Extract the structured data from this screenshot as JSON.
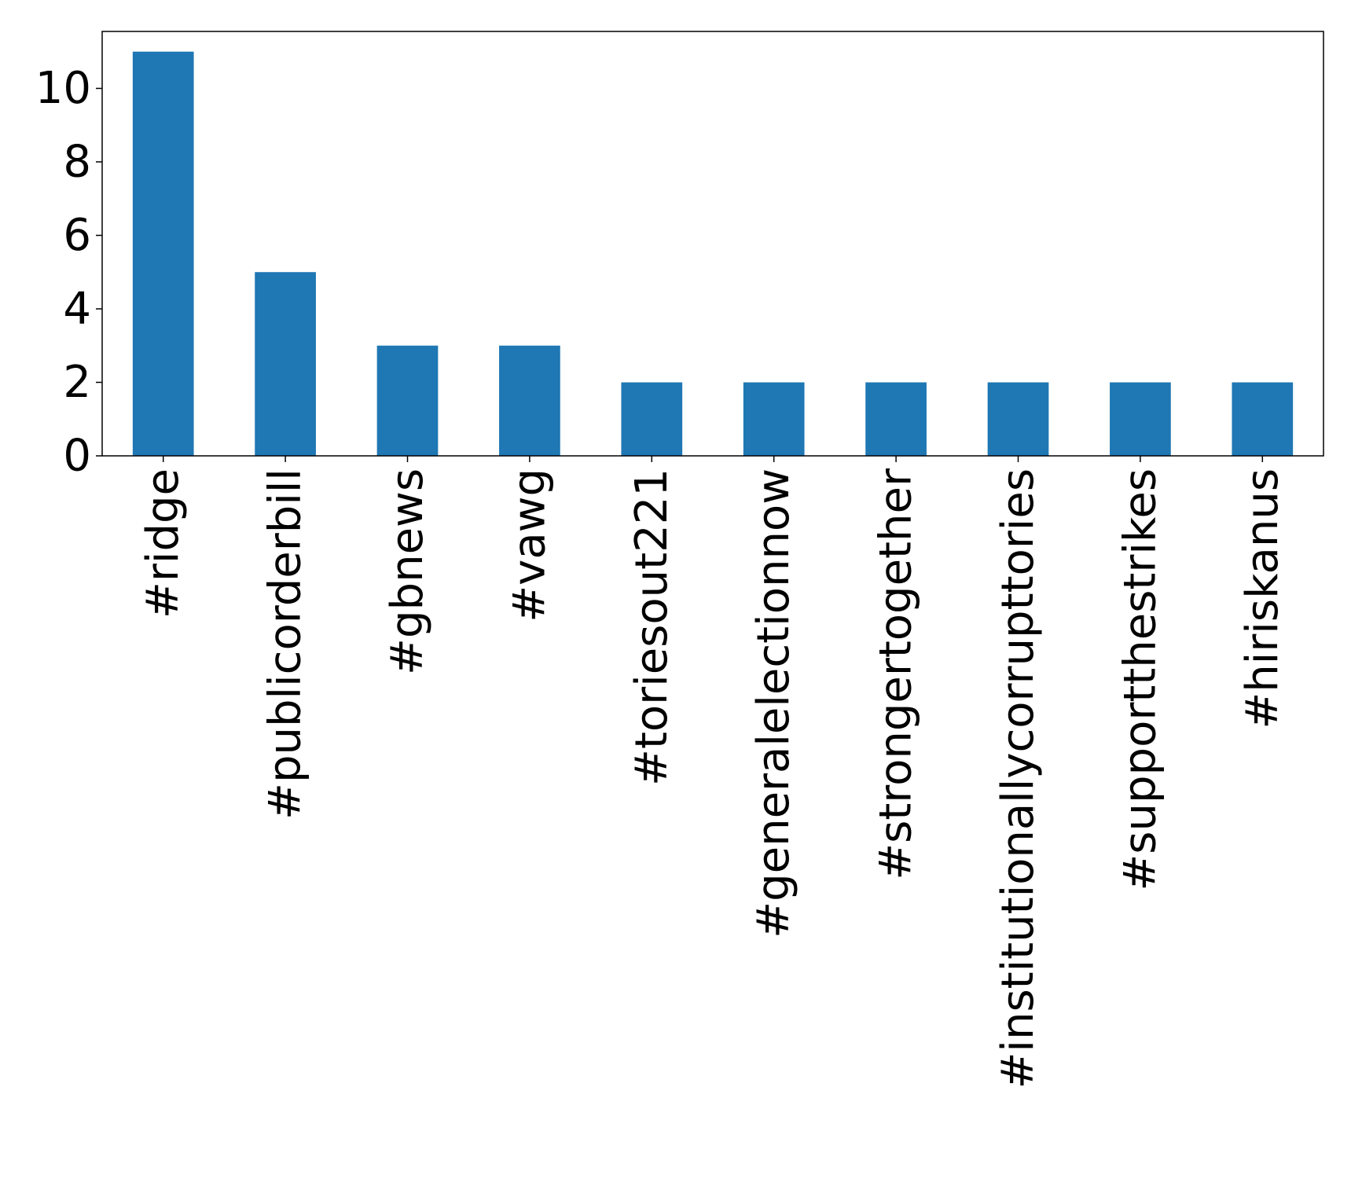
{
  "chart_data": {
    "type": "bar",
    "categories": [
      "#ridge",
      "#publicorderbill",
      "#gbnews",
      "#vawg",
      "#toriesout221",
      "#generalelectionnow",
      "#strongertogether",
      "#institutionallycorrupttories",
      "#supportthestrikes",
      "#hiriskanus"
    ],
    "values": [
      11,
      5,
      3,
      3,
      2,
      2,
      2,
      2,
      2,
      2
    ],
    "title": "",
    "xlabel": "",
    "ylabel": "",
    "ylim": [
      0,
      11.55
    ],
    "yticks": [
      0,
      2,
      4,
      6,
      8,
      10
    ],
    "grid": false,
    "bar_color": "#1f77b4"
  }
}
